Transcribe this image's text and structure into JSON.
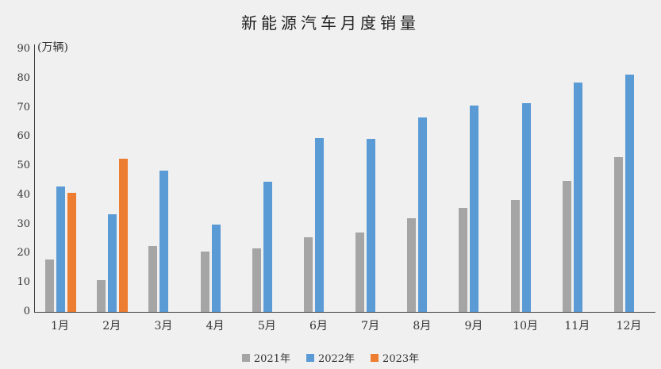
{
  "chart_data": {
    "type": "bar",
    "title": "新能源汽车月度销量",
    "unit_label": "(万辆)",
    "categories": [
      "1月",
      "2月",
      "3月",
      "4月",
      "5月",
      "6月",
      "7月",
      "8月",
      "9月",
      "10月",
      "11月",
      "12月"
    ],
    "series": [
      {
        "name": "2021年",
        "color": "#A5A5A5",
        "values": [
          17.9,
          11.0,
          22.6,
          20.6,
          21.7,
          25.6,
          27.1,
          32.1,
          35.7,
          38.3,
          45.0,
          53.1
        ]
      },
      {
        "name": "2022年",
        "color": "#5B9BD5",
        "values": [
          43.1,
          33.4,
          48.4,
          29.9,
          44.7,
          59.6,
          59.3,
          66.6,
          70.8,
          71.4,
          78.6,
          81.4
        ]
      },
      {
        "name": "2023年",
        "color": "#ED7D31",
        "values": [
          40.8,
          52.5,
          null,
          null,
          null,
          null,
          null,
          null,
          null,
          null,
          null,
          null
        ]
      }
    ],
    "ylim": [
      0,
      90
    ],
    "yticks": [
      0,
      10,
      20,
      30,
      40,
      50,
      60,
      70,
      80,
      90
    ],
    "grid": false,
    "legend_position": "bottom",
    "colors": {
      "background": "#F0F0F0",
      "axis_line": "#3F3F3F",
      "text": "#333333"
    }
  }
}
